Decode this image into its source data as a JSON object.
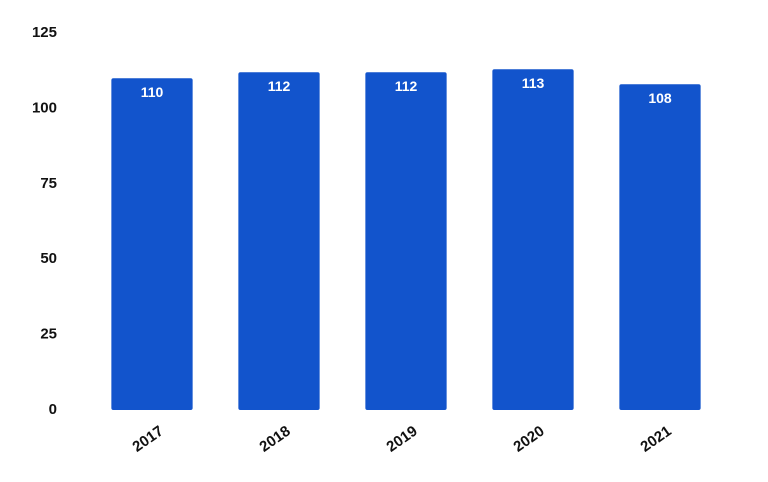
{
  "chart_data": {
    "type": "bar",
    "categories": [
      "2017",
      "2018",
      "2019",
      "2020",
      "2021"
    ],
    "values": [
      110,
      112,
      112,
      113,
      108
    ],
    "color": "#1254cc",
    "ylim": [
      0,
      125
    ],
    "yticks": [
      0,
      25,
      50,
      75,
      100,
      125
    ],
    "grid": false
  }
}
